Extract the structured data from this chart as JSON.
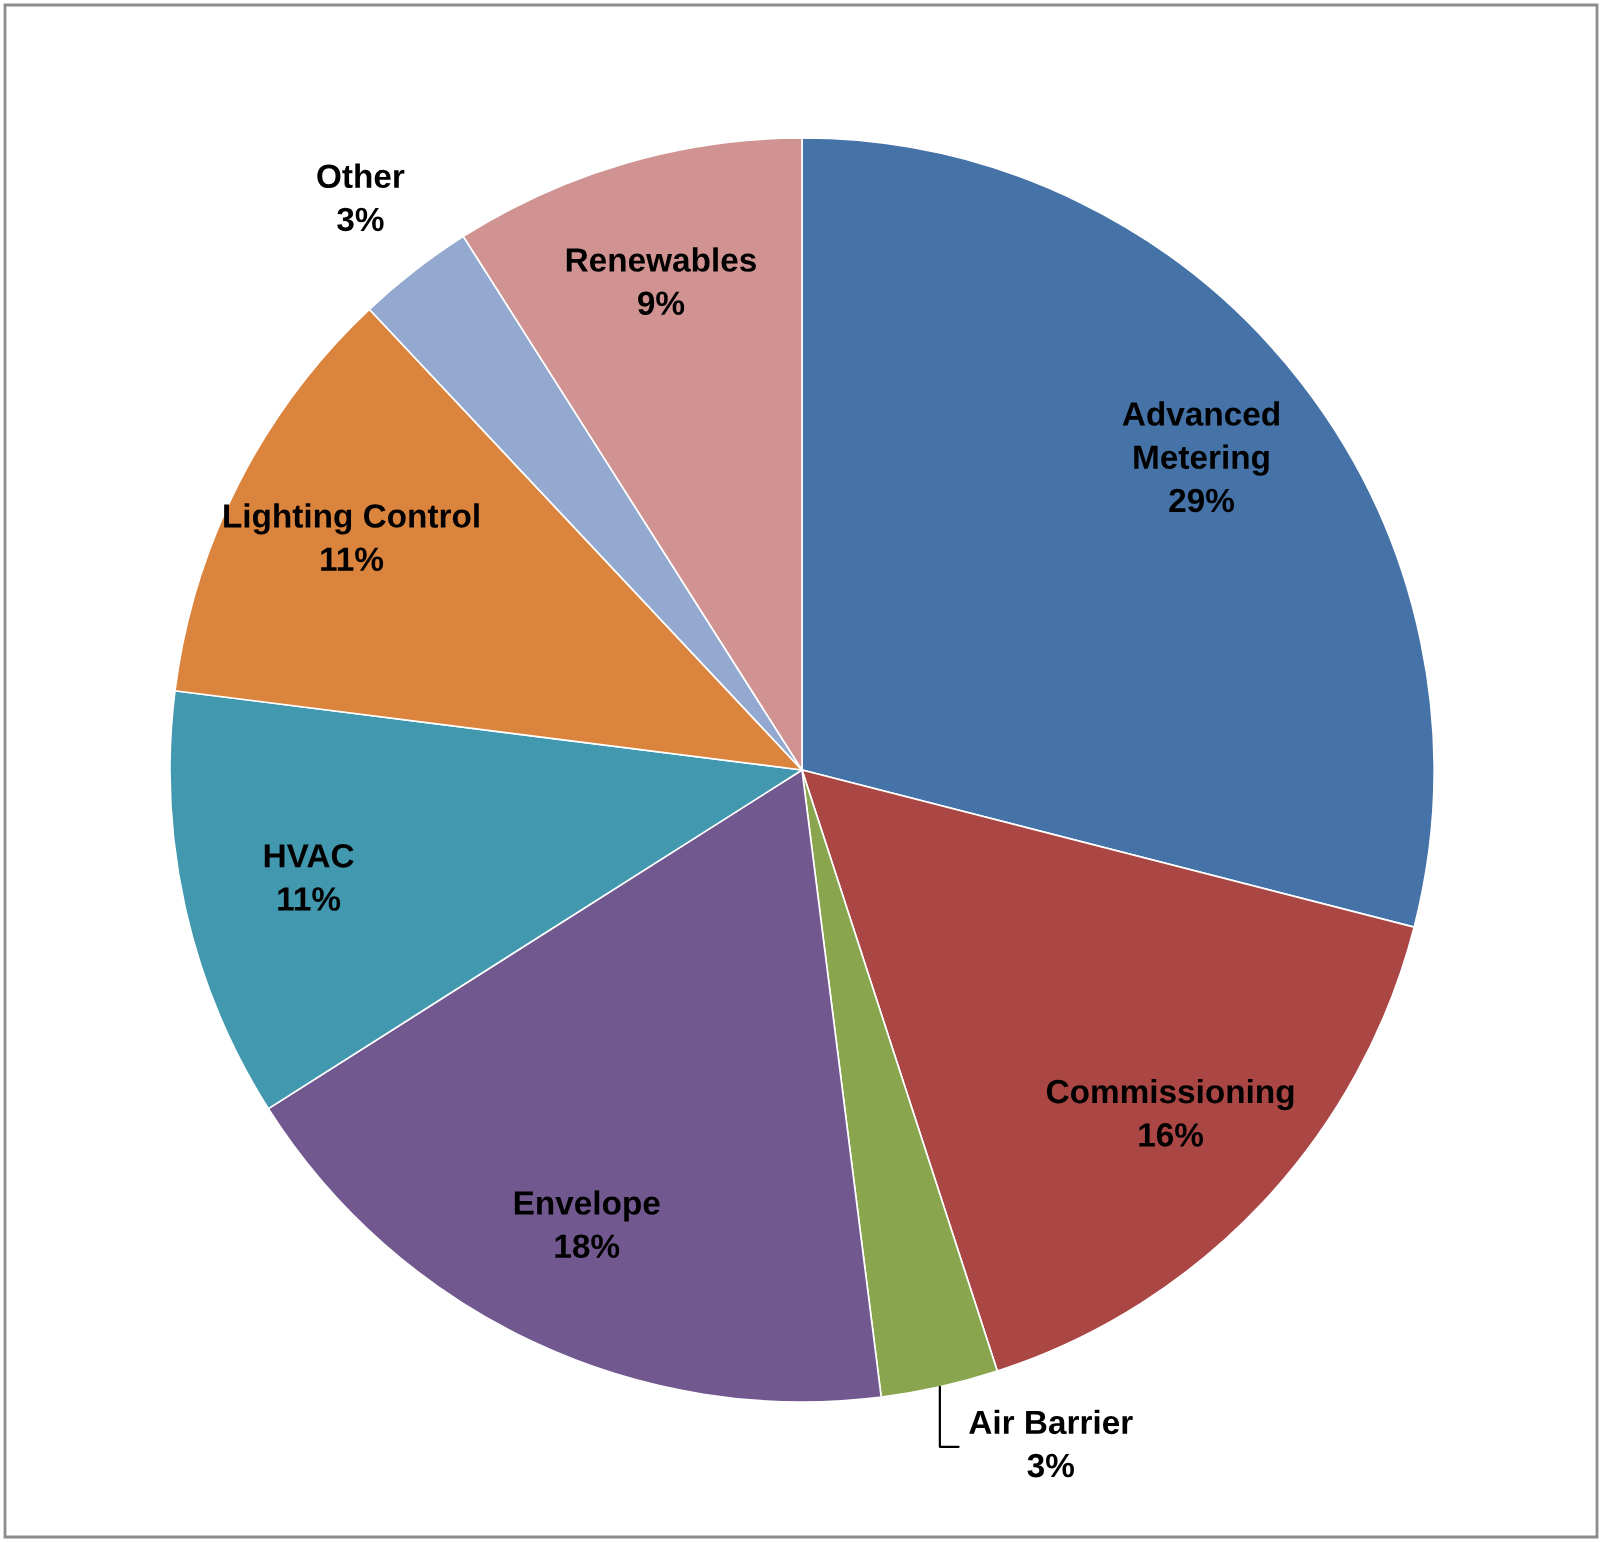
{
  "chart_data": {
    "type": "pie",
    "categories": [
      "Advanced Metering",
      "Commissioning",
      "Air Barrier",
      "Envelope",
      "HVAC",
      "Lighting Control",
      "Other",
      "Renewables"
    ],
    "values": [
      29,
      16,
      3,
      18,
      11,
      11,
      3,
      9
    ],
    "colors": [
      "#4572a7",
      "#aa4643",
      "#89a54e",
      "#71588f",
      "#4198af",
      "#db843d",
      "#93a9cf",
      "#d19392"
    ],
    "value_labels": [
      "29%",
      "16%",
      "3%",
      "18%",
      "11%",
      "11%",
      "3%",
      "9%"
    ]
  }
}
